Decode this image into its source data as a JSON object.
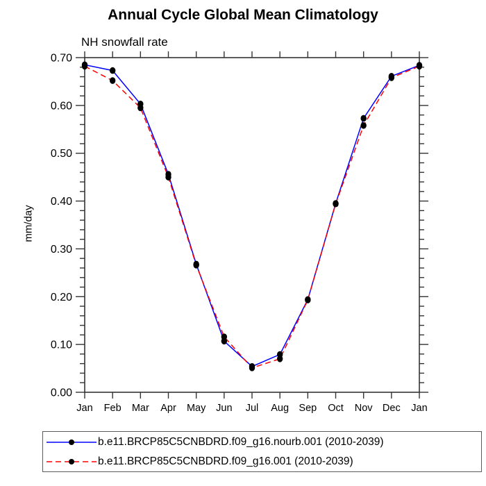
{
  "chart_data": {
    "type": "line",
    "title": "Annual Cycle Global Mean Climatology",
    "subtitle": "NH snowfall rate",
    "ylabel": "mm/day",
    "xlabel": "",
    "categories": [
      "Jan",
      "Feb",
      "Mar",
      "Apr",
      "May",
      "Jun",
      "Jul",
      "Aug",
      "Sep",
      "Oct",
      "Nov",
      "Dec",
      "Jan"
    ],
    "ylim": [
      0.0,
      0.7
    ],
    "ytick_major_step": 0.1,
    "ytick_minor_step": 0.02,
    "ytick_labels": [
      "0.00",
      "0.10",
      "0.20",
      "0.30",
      "0.40",
      "0.50",
      "0.60",
      "0.70"
    ],
    "grid": false,
    "legend_position": "bottom",
    "axis_color": "#333333",
    "marker_color": "#000000",
    "series": [
      {
        "name": "b.e11.BRCP85C5CNBDRD.f09_g16.nourb.001 (2010-2039)",
        "color": "#0000ff",
        "style": "solid",
        "marker": "circle",
        "values": [
          0.685,
          0.673,
          0.603,
          0.456,
          0.268,
          0.107,
          0.054,
          0.079,
          0.194,
          0.395,
          0.573,
          0.661,
          0.684
        ]
      },
      {
        "name": "b.e11.BRCP85C5CNBDRD.f09_g16.001 (2010-2039)",
        "color": "#ff0000",
        "style": "dashed",
        "marker": "circle",
        "values": [
          0.682,
          0.652,
          0.595,
          0.45,
          0.266,
          0.116,
          0.051,
          0.07,
          0.193,
          0.394,
          0.558,
          0.658,
          0.682
        ]
      }
    ]
  }
}
